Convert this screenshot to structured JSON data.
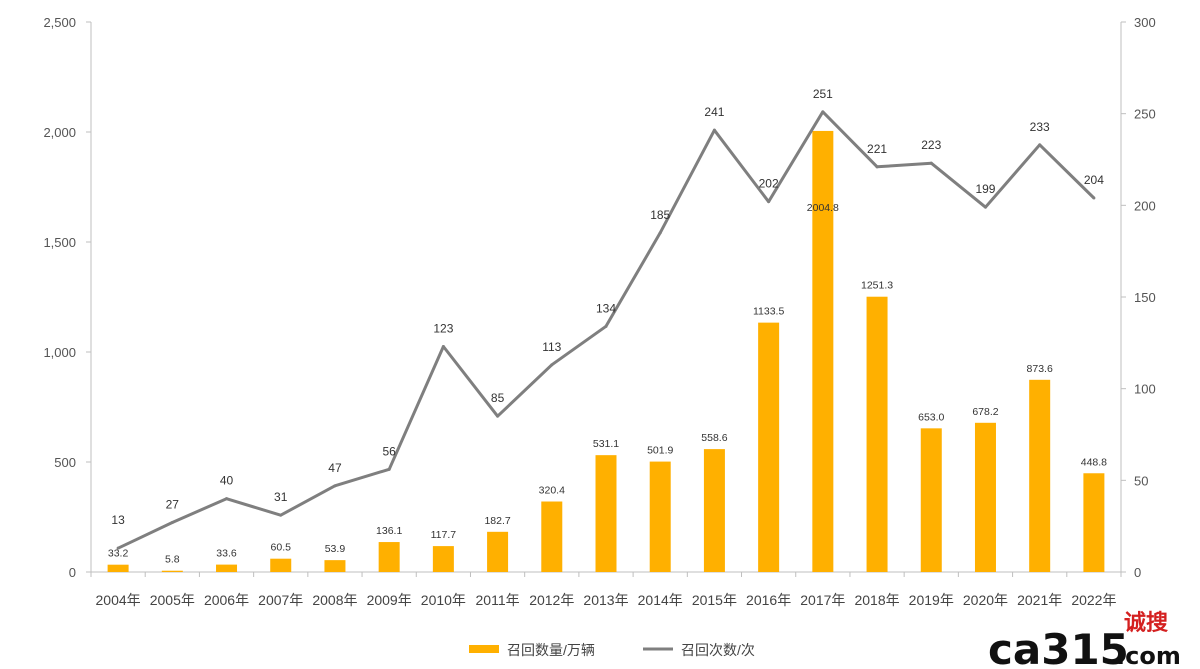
{
  "chart_data": {
    "type": "bar+line",
    "categories": [
      "2004年",
      "2005年",
      "2006年",
      "2007年",
      "2008年",
      "2009年",
      "2010年",
      "2011年",
      "2012年",
      "2013年",
      "2014年",
      "2015年",
      "2016年",
      "2017年",
      "2018年",
      "2019年",
      "2020年",
      "2021年",
      "2022年"
    ],
    "series": [
      {
        "name": "召回数量/万辆",
        "type": "bar",
        "axis": "left",
        "color": "#FFB000",
        "values": [
          33.2,
          5.8,
          33.6,
          60.5,
          53.9,
          136.1,
          117.7,
          182.7,
          320.4,
          531.1,
          501.9,
          558.6,
          1133.5,
          2004.8,
          1251.3,
          653.0,
          678.2,
          873.6,
          448.8
        ],
        "labels": [
          "33.2",
          "5.8",
          "33.6",
          "60.5",
          "53.9",
          "136.1",
          "117.7",
          "182.7",
          "320.4",
          "531.1",
          "501.9",
          "558.6",
          "1133.5",
          "2004.8",
          "1251.3",
          "653.0",
          "678.2",
          "873.6",
          "448.8"
        ]
      },
      {
        "name": "召回次数/次",
        "type": "line",
        "axis": "right",
        "color": "#7F7F7F",
        "values": [
          13,
          27,
          40,
          31,
          47,
          56,
          123,
          85,
          113,
          134,
          185,
          241,
          202,
          251,
          221,
          223,
          199,
          233,
          204
        ],
        "labels": [
          "13",
          "27",
          "40",
          "31",
          "47",
          "56",
          "123",
          "85",
          "113",
          "134",
          "185",
          "241",
          "202",
          "251",
          "221",
          "223",
          "199",
          "233",
          "204"
        ]
      }
    ],
    "y_left": {
      "min": 0,
      "max": 2500,
      "ticks": [
        0,
        500,
        1000,
        1500,
        2000,
        2500
      ],
      "tick_labels": [
        "0",
        "500",
        "1,000",
        "1,500",
        "2,000",
        "2,500"
      ]
    },
    "y_right": {
      "min": 0,
      "max": 300,
      "ticks": [
        0,
        50,
        100,
        150,
        200,
        250,
        300
      ],
      "tick_labels": [
        "0",
        "50",
        "100",
        "150",
        "200",
        "250",
        "300"
      ]
    },
    "legend_position": "bottom-center",
    "grid": false
  },
  "watermark": {
    "brand": "ca315",
    "cn": "诚搜",
    "suffix": ".com"
  }
}
